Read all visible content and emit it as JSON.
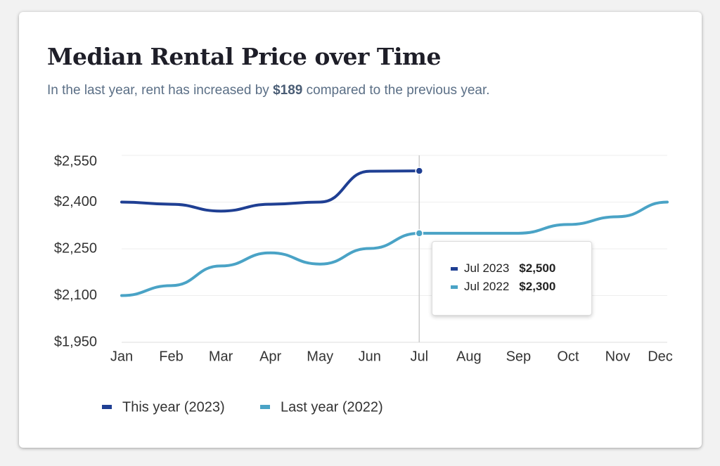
{
  "chart_data": {
    "type": "line",
    "title": "Median Rental Price over Time",
    "subtitle": [
      "In the last year, rent has increased by ",
      "$189",
      " compared to the previous year."
    ],
    "categories": [
      "Jan",
      "Feb",
      "Mar",
      "Apr",
      "May",
      "Jun",
      "Jul",
      "Aug",
      "Sep",
      "Oct",
      "Nov",
      "Dec"
    ],
    "series": [
      {
        "name": "This year (2023)",
        "color": "#1f3f93",
        "values": [
          2400,
          2393,
          2371,
          2393,
          2400,
          2499,
          2500,
          null,
          null,
          null,
          null,
          null
        ]
      },
      {
        "name": "Last year (2022)",
        "color": "#4aa3c6",
        "values": [
          2100,
          2132,
          2195,
          2237,
          2201,
          2251,
          2300,
          2300,
          2300,
          2328,
          2353,
          2400
        ]
      }
    ],
    "ylim": [
      1950,
      2550
    ],
    "yticks": [
      {
        "value": 1950,
        "label": "$1,950"
      },
      {
        "value": 2100,
        "label": "$2,100"
      },
      {
        "value": 2250,
        "label": "$2,250"
      },
      {
        "value": 2400,
        "label": "$2,400"
      },
      {
        "value": 2550,
        "label": "$2,550"
      }
    ],
    "grid": true,
    "tooltip": {
      "category": "Jul",
      "items": [
        {
          "label": "Jul 2023",
          "value": 2500,
          "value_label": "$2,500"
        },
        {
          "label": "Jul 2022",
          "value": 2300,
          "value_label": "$2,300"
        }
      ]
    }
  }
}
